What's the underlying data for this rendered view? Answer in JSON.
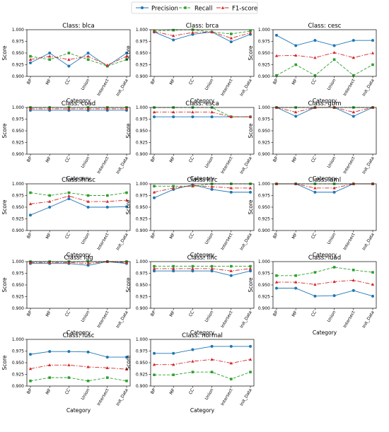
{
  "chart_data": {
    "type": "line",
    "categories": [
      "BP",
      "MF",
      "CC",
      "Union",
      "Intersect",
      "Init_Data"
    ],
    "xlabel": "Category",
    "ylabel": "Score",
    "ylim": [
      0.9,
      1.0
    ],
    "yticks": [
      "0.900",
      "0.925",
      "0.950",
      "0.975",
      "1.000"
    ],
    "legend": {
      "placement": "top-center",
      "entries": [
        {
          "name": "Precision",
          "color": "#1f77b4",
          "dash": "solid",
          "marker": "circle"
        },
        {
          "name": "Recall",
          "color": "#2ca02c",
          "dash": "dashed",
          "marker": "square"
        },
        {
          "name": "F1-score",
          "color": "#d62728",
          "dash": "dashdot",
          "marker": "triangle"
        }
      ]
    },
    "panels": [
      {
        "title": "Class: blca",
        "series": [
          {
            "name": "Precision",
            "values": [
              0.929,
              0.95,
              0.922,
              0.95,
              0.922,
              0.95
            ]
          },
          {
            "name": "Recall",
            "values": [
              0.943,
              0.936,
              0.95,
              0.936,
              0.922,
              0.936
            ]
          },
          {
            "name": "F1-score",
            "values": [
              0.936,
              0.943,
              0.936,
              0.943,
              0.924,
              0.943
            ]
          }
        ]
      },
      {
        "title": "Class: brca",
        "series": [
          {
            "name": "Precision",
            "values": [
              0.995,
              0.978,
              0.99,
              0.995,
              0.974,
              0.99
            ]
          },
          {
            "name": "Recall",
            "values": [
              0.997,
              0.999,
              1.0,
              0.995,
              0.991,
              0.997
            ]
          },
          {
            "name": "F1-score",
            "values": [
              0.996,
              0.987,
              0.994,
              0.995,
              0.982,
              0.993
            ]
          }
        ]
      },
      {
        "title": "Class: cesc",
        "series": [
          {
            "name": "Precision",
            "values": [
              0.988,
              0.966,
              0.977,
              0.966,
              0.977,
              0.977
            ]
          },
          {
            "name": "Recall",
            "values": [
              0.902,
              0.925,
              0.902,
              0.936,
              0.902,
              0.925
            ]
          },
          {
            "name": "F1-score",
            "values": [
              0.944,
              0.945,
              0.94,
              0.951,
              0.94,
              0.95
            ]
          }
        ]
      },
      {
        "title": "Class: coad",
        "series": [
          {
            "name": "Precision",
            "values": [
              0.994,
              0.994,
              0.994,
              0.994,
              0.994,
              0.994
            ]
          },
          {
            "name": "Recall",
            "values": [
              1.0,
              1.0,
              1.0,
              1.0,
              1.0,
              1.0
            ]
          },
          {
            "name": "F1-score",
            "values": [
              0.997,
              0.997,
              0.997,
              0.997,
              0.997,
              0.997
            ]
          }
        ]
      },
      {
        "title": "Class: esca",
        "series": [
          {
            "name": "Precision",
            "values": [
              0.98,
              0.98,
              0.98,
              0.98,
              0.98,
              0.98
            ]
          },
          {
            "name": "Recall",
            "values": [
              1.0,
              1.0,
              1.0,
              1.0,
              0.98,
              0.98
            ]
          },
          {
            "name": "F1-score",
            "values": [
              0.99,
              0.99,
              0.99,
              0.99,
              0.98,
              0.98
            ]
          }
        ]
      },
      {
        "title": "Class: gbm",
        "series": [
          {
            "name": "Precision",
            "values": [
              1.0,
              0.981,
              1.0,
              1.0,
              0.981,
              1.0
            ]
          },
          {
            "name": "Recall",
            "values": [
              1.0,
              1.0,
              1.0,
              1.0,
              1.0,
              1.0
            ]
          },
          {
            "name": "F1-score",
            "values": [
              1.0,
              0.99,
              1.0,
              1.0,
              0.99,
              1.0
            ]
          }
        ]
      },
      {
        "title": "Class: hnsc",
        "series": [
          {
            "name": "Precision",
            "values": [
              0.933,
              0.95,
              0.968,
              0.95,
              0.95,
              0.951
            ]
          },
          {
            "name": "Recall",
            "values": [
              0.981,
              0.975,
              0.981,
              0.975,
              0.975,
              0.981
            ]
          },
          {
            "name": "F1-score",
            "values": [
              0.957,
              0.962,
              0.974,
              0.962,
              0.962,
              0.965
            ]
          }
        ]
      },
      {
        "title": "Class: kirc",
        "series": [
          {
            "name": "Precision",
            "values": [
              0.97,
              0.988,
              0.998,
              0.988,
              0.982,
              0.982
            ]
          },
          {
            "name": "Recall",
            "values": [
              0.995,
              0.995,
              0.995,
              1.0,
              1.0,
              1.0
            ]
          },
          {
            "name": "F1-score",
            "values": [
              0.982,
              0.991,
              0.996,
              0.994,
              0.991,
              0.991
            ]
          }
        ]
      },
      {
        "title": "Class: laml",
        "series": [
          {
            "name": "Precision",
            "values": [
              1.0,
              1.0,
              0.982,
              0.982,
              1.0,
              1.0
            ]
          },
          {
            "name": "Recall",
            "values": [
              1.0,
              1.0,
              1.0,
              1.0,
              1.0,
              1.0
            ]
          },
          {
            "name": "F1-score",
            "values": [
              1.0,
              1.0,
              0.991,
              0.991,
              1.0,
              1.0
            ]
          }
        ]
      },
      {
        "title": "Class: lgg",
        "series": [
          {
            "name": "Precision",
            "values": [
              0.996,
              0.996,
              0.996,
              0.992,
              1.0,
              0.996
            ]
          },
          {
            "name": "Recall",
            "values": [
              1.0,
              1.0,
              1.0,
              1.0,
              1.0,
              1.0
            ]
          },
          {
            "name": "F1-score",
            "values": [
              0.998,
              0.998,
              0.998,
              0.996,
              1.0,
              0.998
            ]
          }
        ]
      },
      {
        "title": "Class: lihc",
        "series": [
          {
            "name": "Precision",
            "values": [
              0.98,
              0.98,
              0.98,
              0.98,
              0.97,
              0.98
            ]
          },
          {
            "name": "Recall",
            "values": [
              0.99,
              0.99,
              0.99,
              0.99,
              0.99,
              0.99
            ]
          },
          {
            "name": "F1-score",
            "values": [
              0.985,
              0.985,
              0.985,
              0.985,
              0.98,
              0.985
            ]
          }
        ]
      },
      {
        "title": "Class: luad",
        "series": [
          {
            "name": "Precision",
            "values": [
              0.943,
              0.943,
              0.926,
              0.927,
              0.938,
              0.926
            ]
          },
          {
            "name": "Recall",
            "values": [
              0.97,
              0.97,
              0.977,
              0.988,
              0.982,
              0.977
            ]
          },
          {
            "name": "F1-score",
            "values": [
              0.956,
              0.956,
              0.951,
              0.957,
              0.96,
              0.951
            ]
          }
        ]
      },
      {
        "title": "Class: lusc",
        "series": [
          {
            "name": "Precision",
            "values": [
              0.968,
              0.974,
              0.974,
              0.973,
              0.962,
              0.962
            ]
          },
          {
            "name": "Recall",
            "values": [
              0.911,
              0.918,
              0.918,
              0.911,
              0.918,
              0.911
            ]
          },
          {
            "name": "F1-score",
            "values": [
              0.937,
              0.945,
              0.945,
              0.941,
              0.939,
              0.936
            ]
          }
        ]
      },
      {
        "title": "Class: normal",
        "series": [
          {
            "name": "Precision",
            "values": [
              0.97,
              0.97,
              0.978,
              0.985,
              0.985,
              0.985
            ]
          },
          {
            "name": "Recall",
            "values": [
              0.924,
              0.924,
              0.93,
              0.93,
              0.915,
              0.93
            ]
          },
          {
            "name": "F1-score",
            "values": [
              0.946,
              0.946,
              0.953,
              0.957,
              0.949,
              0.957
            ]
          }
        ]
      }
    ]
  }
}
